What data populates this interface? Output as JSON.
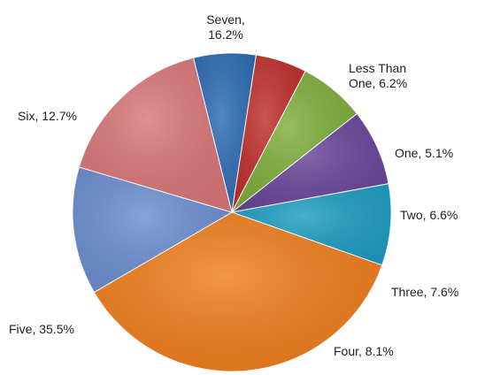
{
  "chart_data": {
    "type": "pie",
    "slices": [
      {
        "name": "Less Than One",
        "label_lines": [
          "Less Than",
          "One, 6.2%"
        ],
        "value": 6.2,
        "color": "#2f6db5"
      },
      {
        "name": "One",
        "label_lines": [
          "One, 5.1%"
        ],
        "value": 5.1,
        "color": "#c0302b"
      },
      {
        "name": "Two",
        "label_lines": [
          "Two, 6.6%"
        ],
        "value": 6.6,
        "color": "#7faf3c"
      },
      {
        "name": "Three",
        "label_lines": [
          "Three, 7.6%"
        ],
        "value": 7.6,
        "color": "#6a479a"
      },
      {
        "name": "Four",
        "label_lines": [
          "Four, 8.1%"
        ],
        "value": 8.1,
        "color": "#1f9dc2"
      },
      {
        "name": "Five",
        "label_lines": [
          "Five, 35.5%"
        ],
        "value": 35.5,
        "color": "#f07f1e"
      },
      {
        "name": "Six",
        "label_lines": [
          "Six, 12.7%"
        ],
        "value": 12.7,
        "color": "#6d8fd0"
      },
      {
        "name": "Seven",
        "label_lines": [
          "Seven,",
          "16.2%"
        ],
        "value": 16.2,
        "color": "#d9777a"
      }
    ],
    "start_angle_deg": -14
  }
}
